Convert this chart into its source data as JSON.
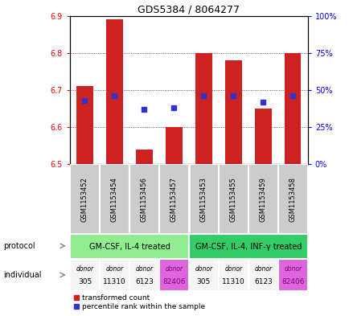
{
  "title": "GDS5384 / 8064277",
  "samples": [
    "GSM1153452",
    "GSM1153454",
    "GSM1153456",
    "GSM1153457",
    "GSM1153453",
    "GSM1153455",
    "GSM1153459",
    "GSM1153458"
  ],
  "red_values": [
    6.71,
    6.89,
    6.54,
    6.6,
    6.8,
    6.78,
    6.65,
    6.8
  ],
  "blue_pct": [
    43,
    46,
    37,
    38,
    46,
    46,
    42,
    46
  ],
  "ylim": [
    6.5,
    6.9
  ],
  "y2lim": [
    0,
    100
  ],
  "yticks": [
    6.5,
    6.6,
    6.7,
    6.8,
    6.9
  ],
  "y2ticks": [
    0,
    25,
    50,
    75,
    100
  ],
  "y2ticklabels": [
    "0%",
    "25%",
    "50%",
    "75%",
    "100%"
  ],
  "protocol_labels": [
    "GM-CSF, IL-4 treated",
    "GM-CSF, IL-4, INF-γ treated"
  ],
  "protocol_colors": [
    "#90ee90",
    "#33cc66"
  ],
  "donor_texts_top": [
    "donor",
    "donor",
    "donor",
    "donor",
    "donor",
    "donor",
    "donor",
    "donor"
  ],
  "donor_texts_bot": [
    "305",
    "11310",
    "6123",
    "82406",
    "305",
    "11310",
    "6123",
    "82406"
  ],
  "donor_colors": [
    "#f5f5f5",
    "#f5f5f5",
    "#f5f5f5",
    "#dd66dd",
    "#f5f5f5",
    "#f5f5f5",
    "#f5f5f5",
    "#dd66dd"
  ],
  "donor_text_colors": [
    "black",
    "black",
    "black",
    "purple",
    "black",
    "black",
    "black",
    "purple"
  ],
  "bar_color": "#cc2222",
  "dot_color": "#3333cc",
  "bar_bottom": 6.5,
  "sample_bg": "#cccccc",
  "legend_labels": [
    "transformed count",
    "percentile rank within the sample"
  ]
}
